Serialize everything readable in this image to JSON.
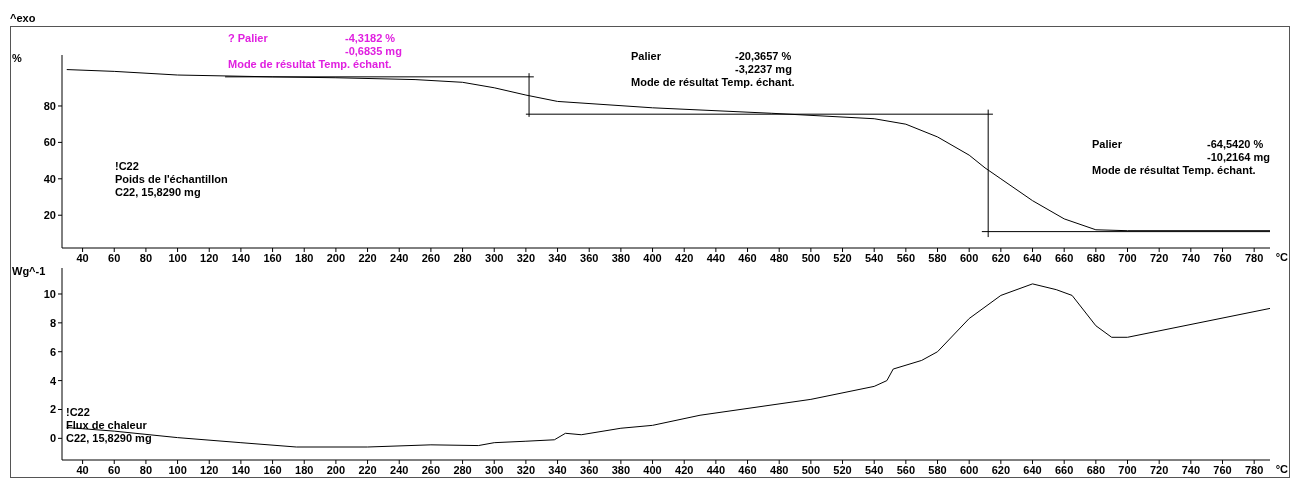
{
  "chart_data": [
    {
      "type": "line",
      "ylabel": "%",
      "xlabel": "°C",
      "xlim": [
        27,
        790
      ],
      "ylim": [
        2,
        108
      ],
      "xticks": [
        40,
        60,
        80,
        100,
        120,
        140,
        160,
        180,
        200,
        220,
        240,
        260,
        280,
        300,
        320,
        340,
        360,
        380,
        400,
        420,
        440,
        460,
        480,
        500,
        520,
        540,
        560,
        580,
        600,
        620,
        640,
        660,
        680,
        700,
        720,
        740,
        760,
        780
      ],
      "yticks": [
        20,
        40,
        60,
        80
      ],
      "annotations": [
        "^exo",
        "? Palier\t-4,3182 %\n\t-0,6835 mg\nMode de résultat Temp. échant.",
        "Palier\t-20,3657 %\n\t-3,2237 mg\nMode de résultat Temp. échant.",
        "Palier\t-64,5420 %\n\t-10,2164 mg\nMode de résultat Temp. échant.",
        "!C22\nPoids de l'échantillon\nC22, 15,8290 mg"
      ],
      "series": [
        {
          "color": "#000000",
          "x": [
            30,
            60,
            100,
            160,
            200,
            250,
            280,
            300,
            320,
            340,
            400,
            475,
            540,
            560,
            580,
            600,
            610,
            620,
            640,
            660,
            680,
            700,
            790
          ],
          "values": [
            100,
            99,
            97,
            96,
            95.5,
            94.5,
            93,
            90,
            86,
            82.5,
            79,
            76,
            73,
            70,
            63,
            53,
            46,
            40,
            28,
            18,
            12,
            11.5,
            11.5
          ]
        },
        {
          "color": "#000000",
          "x": [
            130,
            325
          ],
          "values": [
            96,
            96
          ]
        },
        {
          "color": "#000000",
          "x": [
            322,
            322
          ],
          "values": [
            74,
            98
          ]
        },
        {
          "color": "#000000",
          "x": [
            320,
            615
          ],
          "values": [
            75.5,
            75.5
          ]
        },
        {
          "color": "#000000",
          "x": [
            612,
            612
          ],
          "values": [
            8,
            78
          ]
        },
        {
          "color": "#000000",
          "x": [
            608,
            790
          ],
          "values": [
            11,
            11
          ]
        }
      ]
    },
    {
      "type": "line",
      "ylabel": "Wg^-1",
      "xlabel": "°C",
      "xlim": [
        27,
        790
      ],
      "ylim": [
        -1.5,
        11.8
      ],
      "xticks": [
        40,
        60,
        80,
        100,
        120,
        140,
        160,
        180,
        200,
        220,
        240,
        260,
        280,
        300,
        320,
        340,
        360,
        380,
        400,
        420,
        440,
        460,
        480,
        500,
        520,
        540,
        560,
        580,
        600,
        620,
        640,
        660,
        680,
        700,
        720,
        740,
        760,
        780
      ],
      "yticks": [
        0,
        2,
        4,
        6,
        8,
        10
      ],
      "annotations": [
        "!C22\nFlux de chaleur\nC22, 15,8290 mg"
      ],
      "series": [
        {
          "color": "#000000",
          "x": [
            30,
            60,
            100,
            140,
            175,
            220,
            260,
            290,
            300,
            320,
            338,
            345,
            355,
            380,
            400,
            430,
            500,
            540,
            548,
            552,
            570,
            580,
            600,
            620,
            640,
            655,
            665,
            680,
            690,
            700,
            790
          ],
          "values": [
            0.75,
            0.5,
            0.05,
            -0.3,
            -0.6,
            -0.6,
            -0.45,
            -0.5,
            -0.3,
            -0.2,
            -0.1,
            0.35,
            0.25,
            0.7,
            0.9,
            1.6,
            2.7,
            3.6,
            4,
            4.8,
            5.4,
            6,
            8.3,
            9.9,
            10.7,
            10.3,
            9.9,
            7.8,
            7,
            7,
            9
          ]
        }
      ]
    }
  ]
}
